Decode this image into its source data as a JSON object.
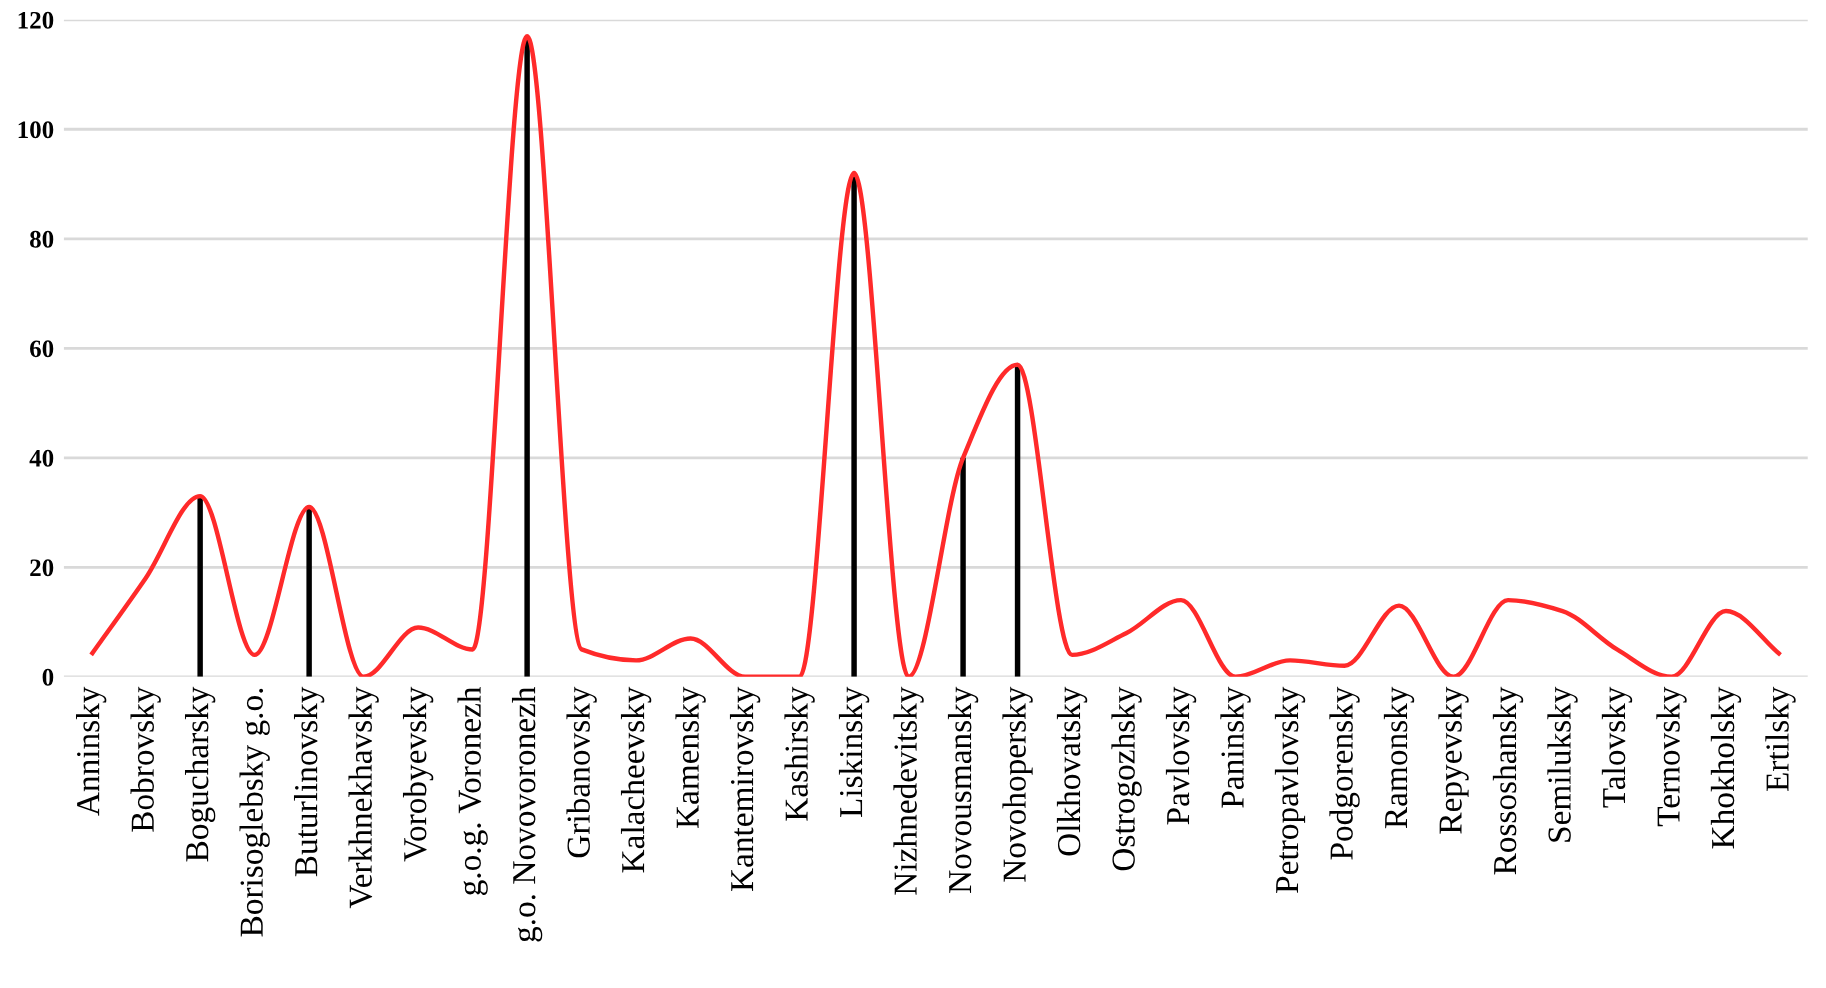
{
  "chart_data": {
    "type": "line",
    "categories": [
      "Anninsky",
      "Bobrovsky",
      "Bogucharsky",
      "Borisoglebsky g.o.",
      "Buturlinovsky",
      "Verkhnekhavsky",
      "Vorobyevsky",
      "g.o.g. Voronezh",
      "g.o. Novovoronezh",
      "Gribanovsky",
      "Kalacheevsky",
      "Kamensky",
      "Kantemirovsky",
      "Kashirsky",
      "Liskinsky",
      "Nizhnedevitsky",
      "Novousmansky",
      "Novohopersky",
      "Olkhovatsky",
      "Ostrogozhsky",
      "Pavlovsky",
      "Paninsky",
      "Petropavlovsky",
      "Podgorensky",
      "Ramonsky",
      "Repyevsky",
      "Rossoshansky",
      "Semiluksky",
      "Talovsky",
      "Ternovsky",
      "Khokholsky",
      "Ertilsky"
    ],
    "series": [
      {
        "type": "bar",
        "color": "#000000",
        "values": [
          null,
          null,
          33,
          null,
          31,
          null,
          null,
          null,
          117,
          null,
          null,
          null,
          null,
          null,
          92,
          null,
          40,
          57,
          null,
          null,
          null,
          null,
          null,
          null,
          null,
          null,
          null,
          null,
          null,
          null,
          null,
          null
        ]
      },
      {
        "color": "#ff2a2a",
        "values": [
          4,
          18,
          33,
          4,
          31,
          0,
          9,
          5,
          117,
          5,
          3,
          7,
          0,
          0,
          92,
          0,
          40,
          57,
          4,
          8,
          14,
          0,
          3,
          2,
          13,
          0,
          14,
          12,
          5,
          0,
          12,
          4
        ]
      }
    ],
    "ylim": [
      0,
      120
    ],
    "yticks": [
      0,
      20,
      40,
      60,
      80,
      100,
      120
    ],
    "grid": "y",
    "marker": "none",
    "line_style": "solid"
  }
}
